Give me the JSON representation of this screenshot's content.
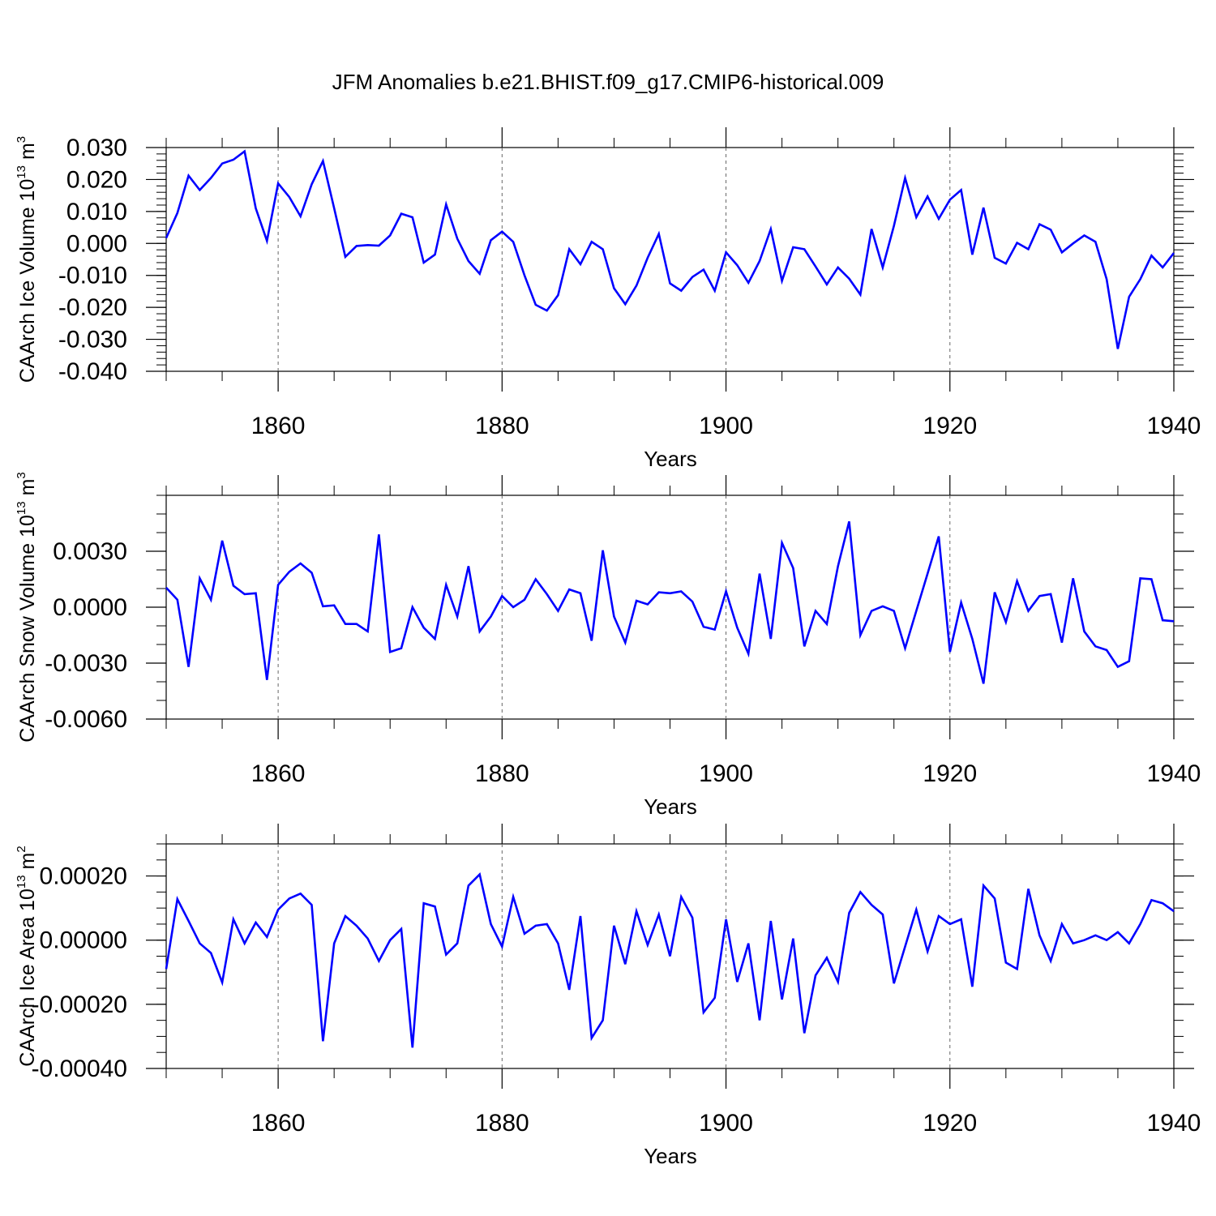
{
  "chart_data": [
    {
      "type": "line",
      "title": "JFM Anomalies b.e21.BHIST.f09_g17.CMIP6-historical.009",
      "ylabel": "CAArch Ice Volume 10",
      "ylabel_sup": "13",
      "ylabel_unit": " m",
      "ylabel_unit_sup": "3",
      "xlabel": "Years",
      "xlim": [
        1850,
        1940
      ],
      "ylim": [
        -0.04,
        0.03
      ],
      "yticks": [
        -0.04,
        -0.03,
        -0.02,
        -0.01,
        0.0,
        0.01,
        0.02,
        0.03
      ],
      "ytick_labels": [
        "-0.040",
        "-0.030",
        "-0.020",
        "-0.010",
        "0.000",
        "0.010",
        "0.020",
        "0.030"
      ],
      "yminor": 0.002,
      "xticks": [
        1860,
        1880,
        1900,
        1920,
        1940
      ],
      "xtick_labels": [
        "1860",
        "1880",
        "1900",
        "1920",
        "1940"
      ],
      "gridlines_x": [
        1860,
        1880,
        1900,
        1920
      ],
      "color": "#0000ff",
      "x_start": 1850,
      "values": [
        0.0017,
        0.0095,
        0.0212,
        0.0167,
        0.0205,
        0.025,
        0.0262,
        0.0288,
        0.011,
        0.0008,
        0.0188,
        0.0145,
        0.0085,
        0.0185,
        0.0258,
        0.011,
        -0.0042,
        -0.0008,
        -0.0005,
        -0.0007,
        0.0025,
        0.0093,
        0.0082,
        -0.006,
        -0.0035,
        0.0122,
        0.0015,
        -0.0055,
        -0.0095,
        0.001,
        0.0037,
        0.0005,
        -0.01,
        -0.0192,
        -0.021,
        -0.0162,
        -0.0018,
        -0.0065,
        0.0005,
        -0.0018,
        -0.014,
        -0.019,
        -0.0132,
        -0.0045,
        0.003,
        -0.0125,
        -0.0148,
        -0.0105,
        -0.0082,
        -0.0148,
        -0.0028,
        -0.0068,
        -0.0123,
        -0.0055,
        0.0045,
        -0.0117,
        -0.0012,
        -0.0018,
        -0.0072,
        -0.0128,
        -0.0075,
        -0.011,
        -0.016,
        0.0045,
        -0.0075,
        0.0055,
        0.0205,
        0.0082,
        0.0147,
        0.0077,
        0.0137,
        0.0167,
        -0.0035,
        0.0112,
        -0.0045,
        -0.0063,
        0.0002,
        -0.0018,
        0.006,
        0.0043,
        -0.0028,
        0.0,
        0.0025,
        0.0005,
        -0.0112,
        -0.033,
        -0.0167,
        -0.0112,
        -0.0038,
        -0.0075,
        -0.003
      ]
    },
    {
      "type": "line",
      "ylabel": "CAArch Snow Volume 10",
      "ylabel_sup": "13",
      "ylabel_unit": " m",
      "ylabel_unit_sup": "3",
      "xlabel": "Years",
      "xlim": [
        1850,
        1940
      ],
      "ylim": [
        -0.006,
        0.006
      ],
      "yticks": [
        -0.006,
        -0.003,
        0.0,
        0.003
      ],
      "ytick_labels": [
        "-0.0060",
        "-0.0030",
        "0.0000",
        "0.0030"
      ],
      "yminor": 0.001,
      "xticks": [
        1860,
        1880,
        1900,
        1920,
        1940
      ],
      "xtick_labels": [
        "1860",
        "1880",
        "1900",
        "1920",
        "1940"
      ],
      "gridlines_x": [
        1860,
        1880,
        1900,
        1920
      ],
      "color": "#0000ff",
      "x_start": 1850,
      "values": [
        0.00105,
        0.0004,
        -0.0032,
        0.00155,
        0.0004,
        0.00357,
        0.00115,
        0.0007,
        0.00075,
        -0.0039,
        0.0012,
        0.0019,
        0.00235,
        0.00185,
        5e-05,
        0.0001,
        -0.0009,
        -0.0009,
        -0.0013,
        0.0039,
        -0.0024,
        -0.0022,
        0.0,
        -0.0011,
        -0.0017,
        0.0012,
        -0.0005,
        0.0022,
        -0.0013,
        -0.0005,
        0.0006,
        0.0,
        0.0004,
        0.0015,
        0.0007,
        -0.0002,
        0.00095,
        0.00075,
        -0.0018,
        0.00305,
        -0.0005,
        -0.0019,
        0.00035,
        0.00015,
        0.0008,
        0.00075,
        0.00085,
        0.0003,
        -0.00105,
        -0.0012,
        0.00085,
        -0.0011,
        -0.0025,
        0.0018,
        -0.0017,
        0.00345,
        0.0021,
        -0.0021,
        -0.0002,
        -0.0009,
        0.0022,
        0.0046,
        -0.0015,
        -0.0002,
        5e-05,
        -0.0002,
        -0.0022,
        -0.0002,
        0.0018,
        0.0038,
        -0.0024,
        0.00025,
        -0.0017,
        -0.0041,
        0.0008,
        -0.0008,
        0.0014,
        -0.0002,
        0.0006,
        0.0007,
        -0.0019,
        0.00155,
        -0.0013,
        -0.0021,
        -0.0023,
        -0.0032,
        -0.0029,
        0.00155,
        0.0015,
        -0.0007,
        -0.00075
      ]
    },
    {
      "type": "line",
      "ylabel": "CAArch Ice Area 10",
      "ylabel_sup": "13",
      "ylabel_unit": " m",
      "ylabel_unit_sup": "2",
      "xlabel": "Years",
      "xlim": [
        1850,
        1940
      ],
      "ylim": [
        -0.0004,
        0.0003
      ],
      "yticks": [
        -0.0004,
        -0.0002,
        0.0,
        0.0002
      ],
      "ytick_labels": [
        "-0.00040",
        "-0.00020",
        "0.00000",
        "0.00020"
      ],
      "yminor": 5e-05,
      "xticks": [
        1860,
        1880,
        1900,
        1920,
        1940
      ],
      "xtick_labels": [
        "1860",
        "1880",
        "1900",
        "1920",
        "1940"
      ],
      "gridlines_x": [
        1860,
        1880,
        1900,
        1920
      ],
      "color": "#0000ff",
      "x_start": 1850,
      "values": [
        -9e-05,
        0.000128,
        6e-05,
        -1e-05,
        -4e-05,
        -0.000132,
        6.5e-05,
        -1e-05,
        5.5e-05,
        1e-05,
        9.5e-05,
        0.00013,
        0.000145,
        0.00011,
        -0.000315,
        -1e-05,
        7.5e-05,
        4.5e-05,
        5e-06,
        -6.5e-05,
        0.0,
        3.5e-05,
        -0.000335,
        0.000115,
        0.000105,
        -4.5e-05,
        -1e-05,
        0.00017,
        0.000205,
        5e-05,
        -2e-05,
        0.000135,
        2e-05,
        4.5e-05,
        5e-05,
        -1e-05,
        -0.000155,
        7.5e-05,
        -0.000305,
        -0.00025,
        4.5e-05,
        -7.5e-05,
        9e-05,
        -1.5e-05,
        8e-05,
        -5e-05,
        0.000135,
        7e-05,
        -0.000225,
        -0.00018,
        6.5e-05,
        -0.00013,
        -1e-05,
        -0.00025,
        6e-05,
        -0.000185,
        5e-06,
        -0.00029,
        -0.00011,
        -5.5e-05,
        -0.00013,
        8.5e-05,
        0.00015,
        0.00011,
        8e-05,
        -0.000135,
        -2e-05,
        9.5e-05,
        -3.5e-05,
        7.5e-05,
        5e-05,
        6.5e-05,
        -0.000145,
        0.00017,
        0.00013,
        -7e-05,
        -9e-05,
        0.00016,
        1.5e-05,
        -6.5e-05,
        5e-05,
        -1e-05,
        0.0,
        1.5e-05,
        0.0,
        2.5e-05,
        -1e-05,
        5e-05,
        0.000125,
        0.000115,
        9e-05
      ]
    }
  ]
}
